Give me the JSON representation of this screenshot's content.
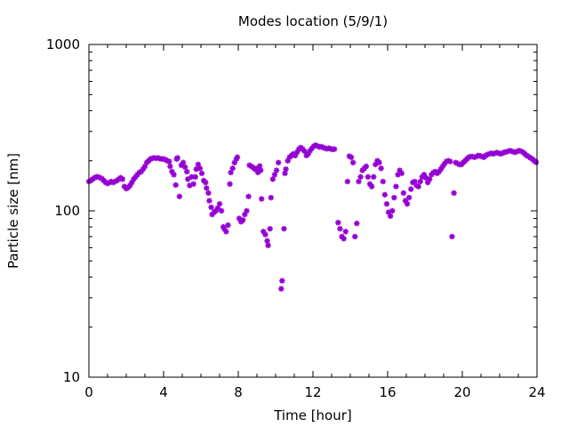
{
  "chart_data": {
    "type": "scatter",
    "title": "Modes location (5/9/1)",
    "xlabel": "Time [hour]",
    "ylabel": "Particle size [nm]",
    "xlim": [
      0,
      24
    ],
    "ylim": [
      10,
      1000
    ],
    "yscale": "log",
    "grid": false,
    "legend": "none",
    "x_ticks": [
      0,
      4,
      8,
      12,
      16,
      20,
      24
    ],
    "x_tick_labels": [
      "0",
      "4",
      "8",
      "12",
      "16",
      "20",
      "24"
    ],
    "y_ticks": [
      10,
      100,
      1000
    ],
    "y_tick_labels": [
      "10",
      "100",
      "1000"
    ],
    "marker_color": "#9400d3",
    "points": [
      [
        0.0,
        150
      ],
      [
        0.1,
        152
      ],
      [
        0.2,
        155
      ],
      [
        0.3,
        158
      ],
      [
        0.4,
        160
      ],
      [
        0.5,
        160
      ],
      [
        0.6,
        158
      ],
      [
        0.7,
        156
      ],
      [
        0.8,
        152
      ],
      [
        0.9,
        148
      ],
      [
        1.0,
        146
      ],
      [
        1.1,
        148
      ],
      [
        1.2,
        150
      ],
      [
        1.3,
        148
      ],
      [
        1.4,
        150
      ],
      [
        1.5,
        152
      ],
      [
        1.6,
        155
      ],
      [
        1.7,
        158
      ],
      [
        1.8,
        155
      ],
      [
        1.9,
        140
      ],
      [
        2.0,
        136
      ],
      [
        2.1,
        138
      ],
      [
        2.2,
        142
      ],
      [
        2.3,
        148
      ],
      [
        2.4,
        155
      ],
      [
        2.5,
        160
      ],
      [
        2.6,
        165
      ],
      [
        2.7,
        170
      ],
      [
        2.8,
        172
      ],
      [
        2.9,
        178
      ],
      [
        3.0,
        185
      ],
      [
        3.1,
        195
      ],
      [
        3.2,
        200
      ],
      [
        3.3,
        205
      ],
      [
        3.4,
        207
      ],
      [
        3.5,
        208
      ],
      [
        3.6,
        207
      ],
      [
        3.7,
        208
      ],
      [
        3.8,
        206
      ],
      [
        3.9,
        205
      ],
      [
        4.0,
        205
      ],
      [
        4.1,
        203
      ],
      [
        4.2,
        200
      ],
      [
        4.3,
        198
      ],
      [
        4.35,
        185
      ],
      [
        4.45,
        172
      ],
      [
        4.55,
        165
      ],
      [
        4.65,
        143
      ],
      [
        4.7,
        205
      ],
      [
        4.75,
        208
      ],
      [
        4.85,
        122
      ],
      [
        4.95,
        188
      ],
      [
        5.05,
        195
      ],
      [
        5.15,
        183
      ],
      [
        5.25,
        172
      ],
      [
        5.3,
        155
      ],
      [
        5.4,
        142
      ],
      [
        5.5,
        160
      ],
      [
        5.6,
        145
      ],
      [
        5.7,
        160
      ],
      [
        5.75,
        178
      ],
      [
        5.85,
        190
      ],
      [
        5.95,
        180
      ],
      [
        6.05,
        168
      ],
      [
        6.15,
        152
      ],
      [
        6.25,
        148
      ],
      [
        6.3,
        137
      ],
      [
        6.4,
        128
      ],
      [
        6.45,
        115
      ],
      [
        6.55,
        105
      ],
      [
        6.6,
        95
      ],
      [
        6.7,
        98
      ],
      [
        6.8,
        100
      ],
      [
        6.9,
        104
      ],
      [
        7.0,
        110
      ],
      [
        7.1,
        100
      ],
      [
        7.2,
        80
      ],
      [
        7.25,
        78
      ],
      [
        7.35,
        75
      ],
      [
        7.45,
        82
      ],
      [
        7.55,
        145
      ],
      [
        7.6,
        170
      ],
      [
        7.7,
        180
      ],
      [
        7.8,
        195
      ],
      [
        7.9,
        205
      ],
      [
        7.95,
        210
      ],
      [
        8.05,
        90
      ],
      [
        8.15,
        86
      ],
      [
        8.25,
        88
      ],
      [
        8.35,
        95
      ],
      [
        8.45,
        100
      ],
      [
        8.55,
        122
      ],
      [
        8.6,
        188
      ],
      [
        8.7,
        185
      ],
      [
        8.8,
        182
      ],
      [
        8.9,
        178
      ],
      [
        9.0,
        180
      ],
      [
        9.05,
        170
      ],
      [
        9.15,
        186
      ],
      [
        9.2,
        175
      ],
      [
        9.25,
        118
      ],
      [
        9.35,
        75
      ],
      [
        9.45,
        72
      ],
      [
        9.55,
        66
      ],
      [
        9.6,
        62
      ],
      [
        9.7,
        78
      ],
      [
        9.75,
        120
      ],
      [
        9.85,
        155
      ],
      [
        9.95,
        165
      ],
      [
        10.05,
        175
      ],
      [
        10.15,
        195
      ],
      [
        10.3,
        34
      ],
      [
        10.35,
        38
      ],
      [
        10.45,
        78
      ],
      [
        10.5,
        168
      ],
      [
        10.55,
        178
      ],
      [
        10.65,
        200
      ],
      [
        10.75,
        210
      ],
      [
        10.85,
        215
      ],
      [
        10.95,
        220
      ],
      [
        11.05,
        215
      ],
      [
        11.15,
        225
      ],
      [
        11.25,
        235
      ],
      [
        11.35,
        240
      ],
      [
        11.45,
        235
      ],
      [
        11.55,
        228
      ],
      [
        11.65,
        215
      ],
      [
        11.75,
        220
      ],
      [
        11.85,
        230
      ],
      [
        11.95,
        238
      ],
      [
        12.05,
        245
      ],
      [
        12.15,
        248
      ],
      [
        12.25,
        245
      ],
      [
        12.35,
        242
      ],
      [
        12.45,
        243
      ],
      [
        12.55,
        240
      ],
      [
        12.65,
        238
      ],
      [
        12.75,
        236
      ],
      [
        12.85,
        238
      ],
      [
        12.95,
        236
      ],
      [
        13.05,
        234
      ],
      [
        13.15,
        235
      ],
      [
        13.35,
        85
      ],
      [
        13.45,
        78
      ],
      [
        13.55,
        70
      ],
      [
        13.65,
        68
      ],
      [
        13.75,
        75
      ],
      [
        13.85,
        150
      ],
      [
        13.95,
        213
      ],
      [
        14.05,
        210
      ],
      [
        14.15,
        195
      ],
      [
        14.25,
        70
      ],
      [
        14.35,
        84
      ],
      [
        14.45,
        150
      ],
      [
        14.55,
        160
      ],
      [
        14.65,
        175
      ],
      [
        14.75,
        180
      ],
      [
        14.85,
        185
      ],
      [
        14.95,
        160
      ],
      [
        15.05,
        145
      ],
      [
        15.15,
        140
      ],
      [
        15.25,
        160
      ],
      [
        15.35,
        190
      ],
      [
        15.45,
        200
      ],
      [
        15.55,
        195
      ],
      [
        15.65,
        180
      ],
      [
        15.75,
        150
      ],
      [
        15.85,
        125
      ],
      [
        15.95,
        110
      ],
      [
        16.05,
        98
      ],
      [
        16.15,
        93
      ],
      [
        16.25,
        100
      ],
      [
        16.35,
        120
      ],
      [
        16.45,
        140
      ],
      [
        16.55,
        165
      ],
      [
        16.65,
        175
      ],
      [
        16.75,
        168
      ],
      [
        16.85,
        128
      ],
      [
        16.95,
        115
      ],
      [
        17.05,
        110
      ],
      [
        17.15,
        120
      ],
      [
        17.25,
        135
      ],
      [
        17.35,
        148
      ],
      [
        17.45,
        150
      ],
      [
        17.55,
        142
      ],
      [
        17.65,
        140
      ],
      [
        17.75,
        150
      ],
      [
        17.85,
        160
      ],
      [
        17.95,
        165
      ],
      [
        18.05,
        158
      ],
      [
        18.15,
        148
      ],
      [
        18.25,
        155
      ],
      [
        18.35,
        165
      ],
      [
        18.45,
        170
      ],
      [
        18.55,
        172
      ],
      [
        18.65,
        168
      ],
      [
        18.75,
        172
      ],
      [
        18.85,
        178
      ],
      [
        18.95,
        185
      ],
      [
        19.05,
        192
      ],
      [
        19.15,
        198
      ],
      [
        19.25,
        200
      ],
      [
        19.35,
        198
      ],
      [
        19.45,
        70
      ],
      [
        19.55,
        128
      ],
      [
        19.65,
        195
      ],
      [
        19.75,
        192
      ],
      [
        19.85,
        190
      ],
      [
        19.95,
        190
      ],
      [
        20.05,
        195
      ],
      [
        20.15,
        200
      ],
      [
        20.25,
        205
      ],
      [
        20.35,
        210
      ],
      [
        20.45,
        212
      ],
      [
        20.55,
        212
      ],
      [
        20.65,
        210
      ],
      [
        20.75,
        212
      ],
      [
        20.85,
        215
      ],
      [
        20.95,
        214
      ],
      [
        21.05,
        212
      ],
      [
        21.15,
        210
      ],
      [
        21.25,
        215
      ],
      [
        21.35,
        218
      ],
      [
        21.45,
        220
      ],
      [
        21.55,
        222
      ],
      [
        21.65,
        220
      ],
      [
        21.75,
        222
      ],
      [
        21.85,
        224
      ],
      [
        21.95,
        222
      ],
      [
        22.05,
        220
      ],
      [
        22.15,
        222
      ],
      [
        22.25,
        225
      ],
      [
        22.35,
        226
      ],
      [
        22.45,
        228
      ],
      [
        22.55,
        230
      ],
      [
        22.65,
        228
      ],
      [
        22.75,
        226
      ],
      [
        22.85,
        225
      ],
      [
        22.95,
        228
      ],
      [
        23.05,
        230
      ],
      [
        23.15,
        228
      ],
      [
        23.25,
        225
      ],
      [
        23.35,
        220
      ],
      [
        23.45,
        215
      ],
      [
        23.55,
        212
      ],
      [
        23.65,
        208
      ],
      [
        23.75,
        205
      ],
      [
        23.85,
        200
      ],
      [
        23.95,
        196
      ]
    ]
  }
}
